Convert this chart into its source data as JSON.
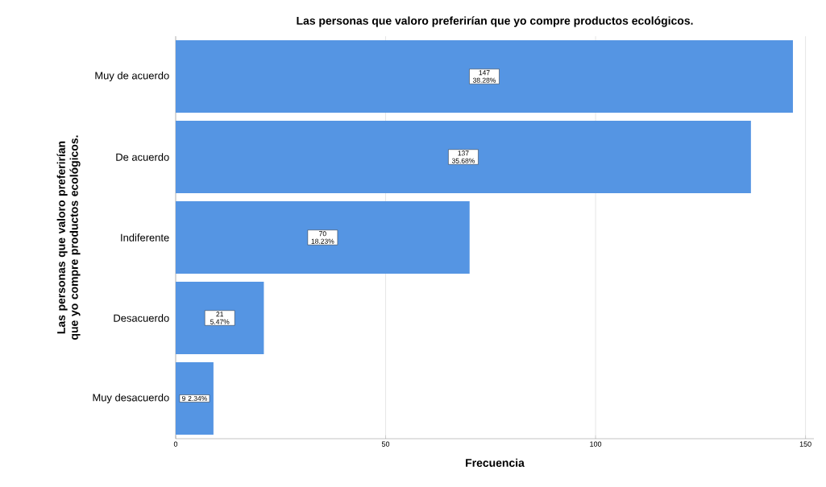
{
  "chart_data": {
    "type": "bar",
    "orientation": "horizontal",
    "title": "Las personas que valoro preferirían que yo compre productos ecológicos.",
    "xlabel": "Frecuencia",
    "ylabel": "Las personas que valoro preferirían que yo compre productos ecológicos.",
    "categories": [
      "Muy de acuerdo",
      "De acuerdo",
      "Indiferente",
      "Desacuerdo",
      "Muy desacuerdo"
    ],
    "values": [
      147,
      137,
      70,
      21,
      9
    ],
    "value_labels": [
      "147 38.28%",
      "137 35.68%",
      "70 18.23%",
      "21 5.47%",
      "9 2.34%"
    ],
    "color": "#5595e3",
    "xlim": [
      0,
      152
    ],
    "xticks": [
      0,
      50,
      100,
      150
    ],
    "grid": "x"
  }
}
